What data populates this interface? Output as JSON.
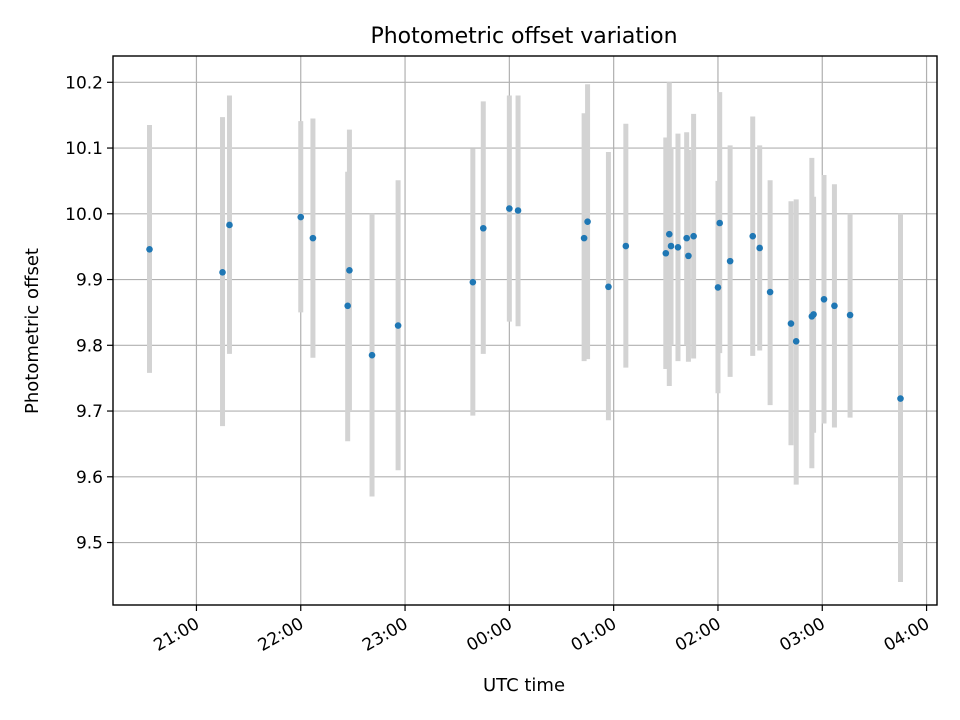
{
  "chart_data": {
    "type": "scatter",
    "title": "Photometric offset variation",
    "xlabel": "UTC time",
    "ylabel": "Photometric offset",
    "x_unit": "UTC time (HH:MM)",
    "xlim": [
      "20:12",
      "04:06"
    ],
    "ylim": [
      9.405,
      10.24
    ],
    "x_ticks": [
      "21:00",
      "22:00",
      "23:00",
      "00:00",
      "01:00",
      "02:00",
      "03:00",
      "04:00"
    ],
    "y_ticks": [
      9.5,
      9.6,
      9.7,
      9.8,
      9.9,
      10.0,
      10.1,
      10.2
    ],
    "y_tick_labels": [
      "9.5",
      "9.6",
      "9.7",
      "9.8",
      "9.9",
      "10.0",
      "10.1",
      "10.2"
    ],
    "grid": true,
    "point_color": "#1f77b4",
    "errorbar_color": "#d3d3d3",
    "points": [
      {
        "t": "20:33",
        "y": 9.946,
        "lo": 9.758,
        "hi": 10.135
      },
      {
        "t": "21:15",
        "y": 9.911,
        "lo": 9.677,
        "hi": 10.147
      },
      {
        "t": "21:19",
        "y": 9.983,
        "lo": 9.787,
        "hi": 10.18
      },
      {
        "t": "22:00",
        "y": 9.995,
        "lo": 9.85,
        "hi": 10.141
      },
      {
        "t": "22:07",
        "y": 9.963,
        "lo": 9.781,
        "hi": 10.145
      },
      {
        "t": "22:27",
        "y": 9.86,
        "lo": 9.654,
        "hi": 10.064
      },
      {
        "t": "22:28",
        "y": 9.914,
        "lo": 9.7,
        "hi": 10.128
      },
      {
        "t": "22:41",
        "y": 9.785,
        "lo": 9.57,
        "hi": 10.0
      },
      {
        "t": "22:56",
        "y": 9.83,
        "lo": 9.61,
        "hi": 10.051
      },
      {
        "t": "23:39",
        "y": 9.896,
        "lo": 9.693,
        "hi": 10.099
      },
      {
        "t": "23:45",
        "y": 9.978,
        "lo": 9.787,
        "hi": 10.171
      },
      {
        "t": "00:00",
        "y": 10.008,
        "lo": 9.836,
        "hi": 10.18
      },
      {
        "t": "00:05",
        "y": 10.005,
        "lo": 9.829,
        "hi": 10.18
      },
      {
        "t": "00:43",
        "y": 9.963,
        "lo": 9.776,
        "hi": 10.153
      },
      {
        "t": "00:45",
        "y": 9.988,
        "lo": 9.779,
        "hi": 10.197
      },
      {
        "t": "00:57",
        "y": 9.889,
        "lo": 9.686,
        "hi": 10.094
      },
      {
        "t": "01:07",
        "y": 9.951,
        "lo": 9.766,
        "hi": 10.137
      },
      {
        "t": "01:30",
        "y": 9.94,
        "lo": 9.764,
        "hi": 10.116
      },
      {
        "t": "01:32",
        "y": 9.969,
        "lo": 9.738,
        "hi": 10.2
      },
      {
        "t": "01:33",
        "y": 9.951,
        "lo": 9.8,
        "hi": 10.1
      },
      {
        "t": "01:37",
        "y": 9.949,
        "lo": 9.776,
        "hi": 10.122
      },
      {
        "t": "01:42",
        "y": 9.963,
        "lo": 9.8,
        "hi": 10.124
      },
      {
        "t": "01:43",
        "y": 9.936,
        "lo": 9.775,
        "hi": 10.097
      },
      {
        "t": "01:46",
        "y": 9.966,
        "lo": 9.78,
        "hi": 10.152
      },
      {
        "t": "02:00",
        "y": 9.888,
        "lo": 9.727,
        "hi": 10.05
      },
      {
        "t": "02:01",
        "y": 9.986,
        "lo": 9.788,
        "hi": 10.185
      },
      {
        "t": "02:07",
        "y": 9.928,
        "lo": 9.752,
        "hi": 10.104
      },
      {
        "t": "02:20",
        "y": 9.966,
        "lo": 9.784,
        "hi": 10.148
      },
      {
        "t": "02:24",
        "y": 9.948,
        "lo": 9.792,
        "hi": 10.104
      },
      {
        "t": "02:30",
        "y": 9.881,
        "lo": 9.709,
        "hi": 10.051
      },
      {
        "t": "02:42",
        "y": 9.833,
        "lo": 9.648,
        "hi": 10.019
      },
      {
        "t": "02:45",
        "y": 9.806,
        "lo": 9.588,
        "hi": 10.022
      },
      {
        "t": "02:54",
        "y": 9.844,
        "lo": 9.613,
        "hi": 10.085
      },
      {
        "t": "02:55",
        "y": 9.847,
        "lo": 9.667,
        "hi": 10.026
      },
      {
        "t": "03:01",
        "y": 9.87,
        "lo": 9.681,
        "hi": 10.059
      },
      {
        "t": "03:07",
        "y": 9.86,
        "lo": 9.675,
        "hi": 10.045
      },
      {
        "t": "03:16",
        "y": 9.846,
        "lo": 9.69,
        "hi": 10.0
      },
      {
        "t": "03:45",
        "y": 9.719,
        "lo": 9.44,
        "hi": 10.0
      }
    ]
  }
}
